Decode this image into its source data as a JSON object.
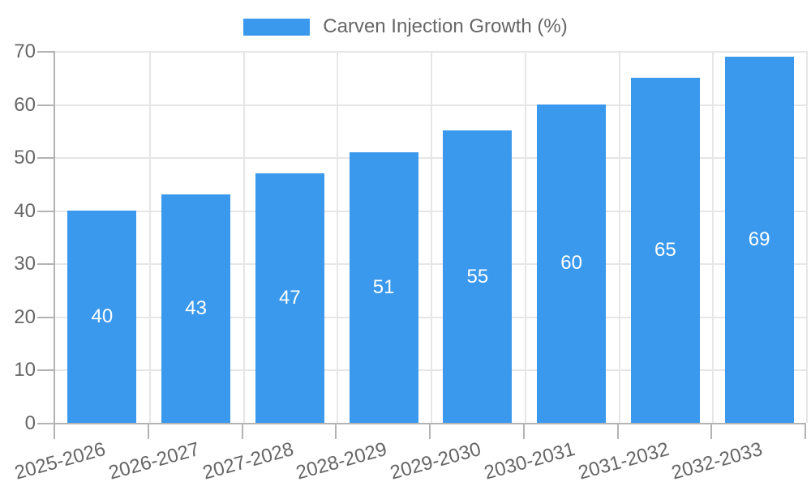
{
  "chart_data": {
    "type": "bar",
    "title": "Carven Injection Growth (%)",
    "categories": [
      "2025-2026",
      "2026-2027",
      "2027-2028",
      "2028-2029",
      "2029-2030",
      "2030-2031",
      "2031-2032",
      "2032-2033"
    ],
    "series": [
      {
        "name": "Carven Injection Growth (%)",
        "values": [
          40,
          43,
          47,
          51,
          55,
          60,
          65,
          69
        ]
      }
    ],
    "xlabel": "",
    "ylabel": "",
    "ylim": [
      0,
      70
    ],
    "ytick_step": 10,
    "yticks": [
      0,
      10,
      20,
      30,
      40,
      50,
      60,
      70
    ],
    "grid": true,
    "legend_position": "top",
    "value_label_position": "inside-center",
    "colors": {
      "bar": "#3b99ed",
      "value_label": "#ffffff",
      "axis": "#b3b3b3",
      "gridline": "#e6e6e6",
      "text": "#666666",
      "background": "#ffffff"
    }
  }
}
